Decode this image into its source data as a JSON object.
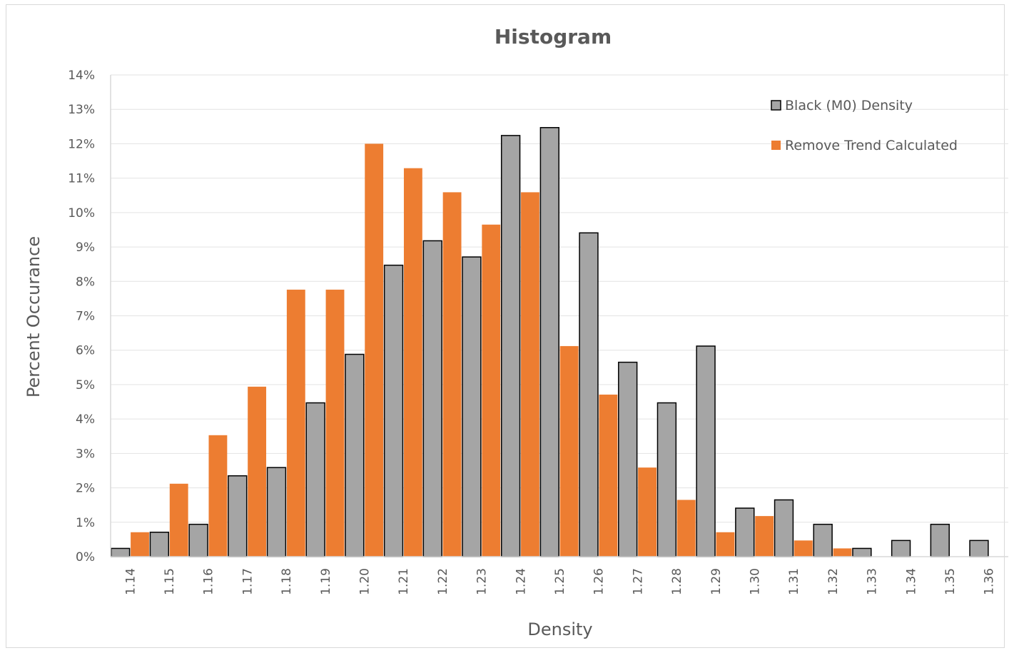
{
  "chart_data": {
    "type": "bar",
    "title": "Histogram",
    "xlabel": "Density",
    "ylabel": "Percent Occurance",
    "ylim": [
      0,
      14
    ],
    "y_ticks": [
      "0%",
      "1%",
      "2%",
      "3%",
      "4%",
      "5%",
      "6%",
      "7%",
      "8%",
      "9%",
      "10%",
      "11%",
      "12%",
      "13%",
      "14%"
    ],
    "categories": [
      "1.14",
      "1.15",
      "1.16",
      "1.17",
      "1.18",
      "1.19",
      "1.20",
      "1.21",
      "1.22",
      "1.23",
      "1.24",
      "1.25",
      "1.26",
      "1.27",
      "1.28",
      "1.29",
      "1.30",
      "1.31",
      "1.32",
      "1.33",
      "1.34",
      "1.35",
      "1.36"
    ],
    "legend_position": "top-right",
    "grid": true,
    "series": [
      {
        "name": "Black (M0) Density",
        "color": "#a5a5a5",
        "edge_color": "#000000",
        "values": [
          0.24,
          0.71,
          0.94,
          2.35,
          2.59,
          4.47,
          5.88,
          8.47,
          9.18,
          8.71,
          12.24,
          12.47,
          9.41,
          5.65,
          4.47,
          6.12,
          1.41,
          1.65,
          0.94,
          0.24,
          0.47,
          0.94,
          0.47
        ]
      },
      {
        "name": "Remove Trend Calculated",
        "color": "#ed7d31",
        "edge_color": "",
        "values": [
          0.71,
          2.12,
          3.53,
          4.94,
          7.76,
          7.76,
          12.0,
          11.29,
          10.59,
          9.65,
          10.59,
          6.12,
          4.71,
          2.59,
          1.65,
          0.71,
          1.18,
          0.47,
          0.24,
          0,
          0,
          0,
          0
        ]
      }
    ]
  }
}
